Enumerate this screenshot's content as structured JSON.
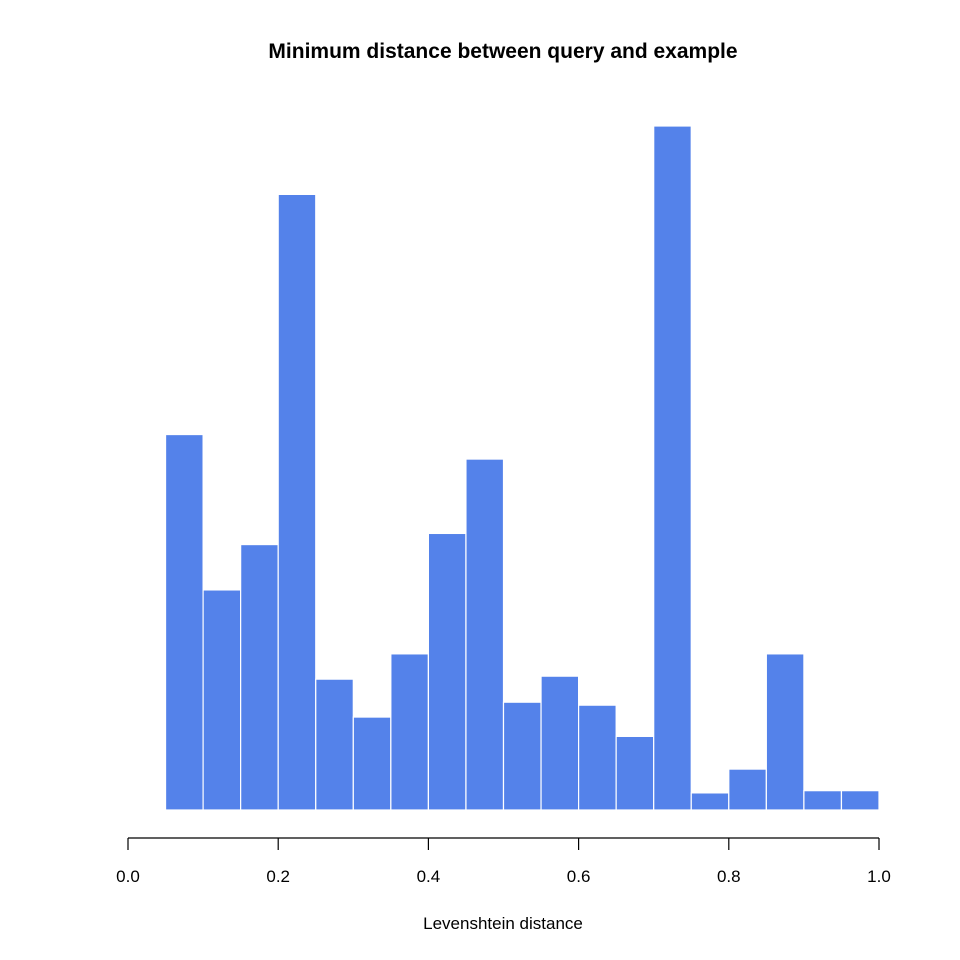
{
  "chart_data": {
    "type": "bar",
    "title": "Minimum distance between query and example",
    "xlabel": "Levenshtein distance",
    "ylabel": "",
    "bar_color": "#5482ea",
    "xlim": [
      0,
      1
    ],
    "ylim": [
      0,
      920
    ],
    "x_ticks": [
      "0.0",
      "0.2",
      "0.4",
      "0.6",
      "0.8",
      "1.0"
    ],
    "bins": [
      {
        "x0": 0.0,
        "x1": 0.05,
        "value": 1
      },
      {
        "x0": 0.05,
        "x1": 0.1,
        "value": 505
      },
      {
        "x0": 0.1,
        "x1": 0.15,
        "value": 296
      },
      {
        "x0": 0.15,
        "x1": 0.2,
        "value": 357
      },
      {
        "x0": 0.2,
        "x1": 0.25,
        "value": 828
      },
      {
        "x0": 0.25,
        "x1": 0.3,
        "value": 176
      },
      {
        "x0": 0.3,
        "x1": 0.35,
        "value": 125
      },
      {
        "x0": 0.35,
        "x1": 0.4,
        "value": 210
      },
      {
        "x0": 0.4,
        "x1": 0.45,
        "value": 372
      },
      {
        "x0": 0.45,
        "x1": 0.5,
        "value": 472
      },
      {
        "x0": 0.5,
        "x1": 0.55,
        "value": 145
      },
      {
        "x0": 0.55,
        "x1": 0.6,
        "value": 180
      },
      {
        "x0": 0.6,
        "x1": 0.65,
        "value": 141
      },
      {
        "x0": 0.65,
        "x1": 0.7,
        "value": 99
      },
      {
        "x0": 0.7,
        "x1": 0.75,
        "value": 920
      },
      {
        "x0": 0.75,
        "x1": 0.8,
        "value": 23
      },
      {
        "x0": 0.8,
        "x1": 0.85,
        "value": 55
      },
      {
        "x0": 0.85,
        "x1": 0.9,
        "value": 210
      },
      {
        "x0": 0.9,
        "x1": 0.95,
        "value": 26
      },
      {
        "x0": 0.95,
        "x1": 1.0,
        "value": 26
      }
    ]
  }
}
